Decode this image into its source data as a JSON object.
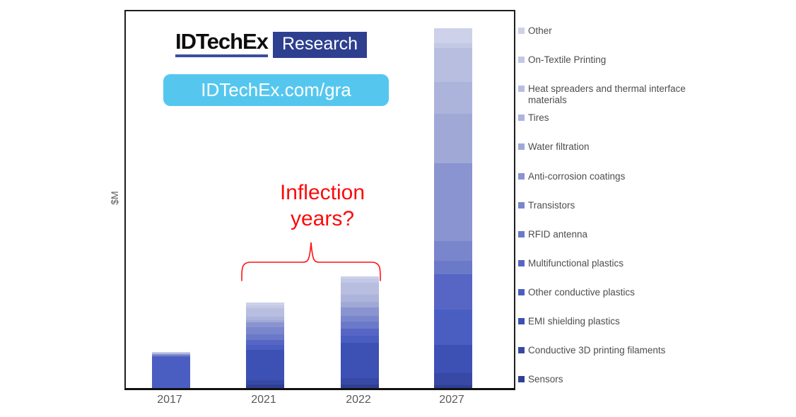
{
  "branding": {
    "logo_text": "IDTechEx",
    "logo_badge": "Research",
    "logo_badge_bg": "#2e3f90",
    "logo_underline_color": "#3c4da1",
    "url_text": "IDTechEx.com/gra",
    "url_banner_bg": "#55c7ef"
  },
  "annotation": {
    "line1": "Inflection",
    "line2": "years?",
    "color": "#fb0b0b"
  },
  "chart_data": {
    "type": "bar",
    "stacked": true,
    "title": "",
    "xlabel": "",
    "ylabel": "$M",
    "axis_note": "y-axis shows no numeric ticks; values are relative units read proportionally from bar heights (1 unit = 1 px)",
    "grid": false,
    "legend_position": "right",
    "categories": [
      "2017",
      "2021",
      "2022",
      "2027"
    ],
    "stack_order": "first series at top of each bar, last series (Sensors) at bottom",
    "totals": [
      51,
      121,
      158,
      509
    ],
    "series": [
      {
        "name": "Other",
        "color": "#cdd1e9",
        "values": [
          0.5,
          4,
          3,
          21
        ]
      },
      {
        "name": "On-Textile Printing",
        "color": "#c3c8e4",
        "values": [
          0.5,
          4,
          6,
          7
        ]
      },
      {
        "name": "Heat spreaders and thermal interface materials",
        "color": "#b8bee0",
        "values": [
          1,
          12,
          17,
          48
        ]
      },
      {
        "name": "Tires",
        "color": "#adb4db",
        "values": [
          0.5,
          5,
          10,
          45
        ]
      },
      {
        "name": "Water filtration",
        "color": "#a0a9d6",
        "values": [
          0.5,
          3,
          8,
          70
        ]
      },
      {
        "name": "Anti-corrosion coatings",
        "color": "#8a94d0",
        "values": [
          1,
          7,
          12,
          110
        ]
      },
      {
        "name": "Transistors",
        "color": "#7a86cc",
        "values": [
          1,
          10,
          8,
          28
        ]
      },
      {
        "name": "RFID antenna",
        "color": "#6b79c9",
        "values": [
          1,
          8,
          10,
          19
        ]
      },
      {
        "name": "Multifunctional plastics",
        "color": "#5766c5",
        "values": [
          1,
          7,
          10,
          50
        ]
      },
      {
        "name": "Other conductive plastics",
        "color": "#4a5ec2",
        "values": [
          44,
          7,
          10,
          50
        ]
      },
      {
        "name": "EMI shielding plastics",
        "color": "#3d50b4",
        "values": [
          0,
          43,
          50,
          40
        ]
      },
      {
        "name": "Conductive 3D printing filaments",
        "color": "#3749a5",
        "values": [
          0,
          6,
          9,
          17
        ]
      },
      {
        "name": "Sensors",
        "color": "#2f3f93",
        "values": [
          0,
          5,
          5,
          4
        ]
      }
    ]
  }
}
